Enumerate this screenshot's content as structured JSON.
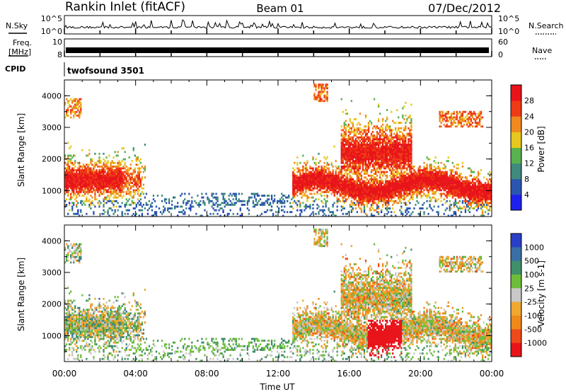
{
  "header": {
    "station": "Rankin Inlet (fitACF)",
    "beam": "Beam 01",
    "date": "07/Dec/2012"
  },
  "strips": {
    "nsky_label": "N.Sky",
    "nsearch_label": "N.Search",
    "noise_tick_top": "10^5",
    "noise_tick_bottom": "10^0",
    "freq_label_1": "Freq.",
    "freq_label_2": "[MHz]",
    "freq_tick_top": "10",
    "freq_tick_bottom": "8",
    "nave_label": "Nave",
    "nave_tick_top": "60",
    "nave_tick_bottom": "0",
    "cpid_label": "CPID",
    "cpid_text": "twofsound 3501"
  },
  "axes": {
    "ylabel": "Slant Range [km]",
    "xlabel": "Time UT",
    "y_ticks": [
      "1000",
      "2000",
      "3000",
      "4000"
    ],
    "x_ticks": [
      "00:00",
      "04:00",
      "08:00",
      "12:00",
      "16:00",
      "20:00",
      "00:00"
    ]
  },
  "power_scale": {
    "label": "Power [dB]",
    "ticks": [
      "4",
      "8",
      "12",
      "16",
      "20",
      "24",
      "28"
    ],
    "colors": [
      "#1e20ee",
      "#2a55b0",
      "#3f8a7d",
      "#58b24e",
      "#e8c81e",
      "#f08a1e",
      "#ef3a16",
      "#e8141a"
    ]
  },
  "velocity_scale": {
    "label": "Velocity [m s-1]",
    "ticks": [
      "1000",
      "500",
      "100",
      "25",
      "-25",
      "-100",
      "-500",
      "-1000"
    ],
    "colors": [
      "#2a3fc8",
      "#3a6fa6",
      "#3f8f6a",
      "#6ebd3a",
      "#c8c8c8",
      "#f0a830",
      "#ef8a1a",
      "#ef4a1a",
      "#e8141a"
    ]
  },
  "chart_data": {
    "type": "heatmap",
    "title": "Rankin Inlet (fitACF) Beam 01 07/Dec/2012",
    "xlabel": "Time UT",
    "ylabel": "Slant Range [km]",
    "xlim": [
      "00:00",
      "24:00"
    ],
    "ylim": [
      180,
      4500
    ],
    "panels": [
      {
        "name": "Power",
        "units": "dB",
        "range": [
          0,
          30
        ]
      },
      {
        "name": "Velocity",
        "units": "m s-1",
        "range": [
          -1000,
          1000
        ]
      }
    ],
    "echo_regions": [
      {
        "t_start": "00:00",
        "t_end": "04:30",
        "range_km": [
          800,
          2100
        ],
        "power_db": 24,
        "velocity": -100
      },
      {
        "t_start": "04:30",
        "t_end": "13:00",
        "range_km": [
          200,
          900
        ],
        "power_db": 8,
        "velocity": 100
      },
      {
        "t_start": "13:00",
        "t_end": "24:00",
        "range_km": [
          700,
          2900
        ],
        "power_db": 26,
        "velocity": -500
      }
    ]
  }
}
